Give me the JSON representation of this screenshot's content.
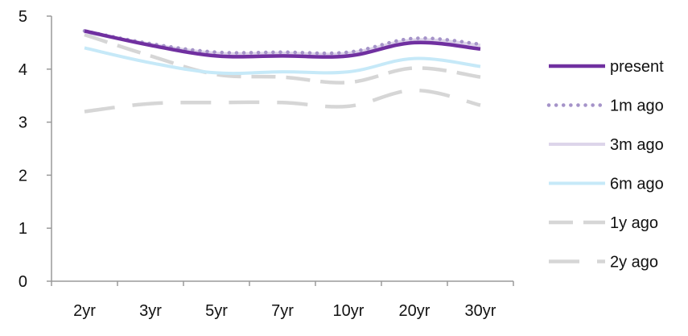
{
  "chart_data": {
    "type": "line",
    "categories": [
      "2yr",
      "3yr",
      "5yr",
      "7yr",
      "10yr",
      "20yr",
      "30yr"
    ],
    "ylim": [
      0,
      5
    ],
    "yticks": [
      0,
      1,
      2,
      3,
      4,
      5
    ],
    "grid": false,
    "legend_position": "right",
    "series": [
      {
        "name": "present",
        "values": [
          4.72,
          4.45,
          4.25,
          4.25,
          4.25,
          4.5,
          4.38
        ],
        "color": "#7030a0",
        "style": "solid"
      },
      {
        "name": "1m ago",
        "values": [
          4.72,
          4.48,
          4.32,
          4.32,
          4.32,
          4.58,
          4.47
        ],
        "color": "#a593c9",
        "style": "dotted"
      },
      {
        "name": "3m ago",
        "values": [
          4.7,
          4.47,
          4.3,
          4.3,
          4.3,
          4.55,
          4.45
        ],
        "color": "#ddd5ea",
        "style": "solid"
      },
      {
        "name": "6m ago",
        "values": [
          4.4,
          4.12,
          3.93,
          3.95,
          3.95,
          4.2,
          4.05
        ],
        "color": "#c6e9f8",
        "style": "solid"
      },
      {
        "name": "1y ago",
        "values": [
          4.65,
          4.25,
          3.9,
          3.85,
          3.75,
          4.02,
          3.85
        ],
        "color": "#d6d6d6",
        "style": "dashed"
      },
      {
        "name": "2y ago",
        "values": [
          3.2,
          3.35,
          3.37,
          3.37,
          3.3,
          3.6,
          3.32
        ],
        "color": "#d6d6d6",
        "style": "longdash"
      }
    ]
  }
}
